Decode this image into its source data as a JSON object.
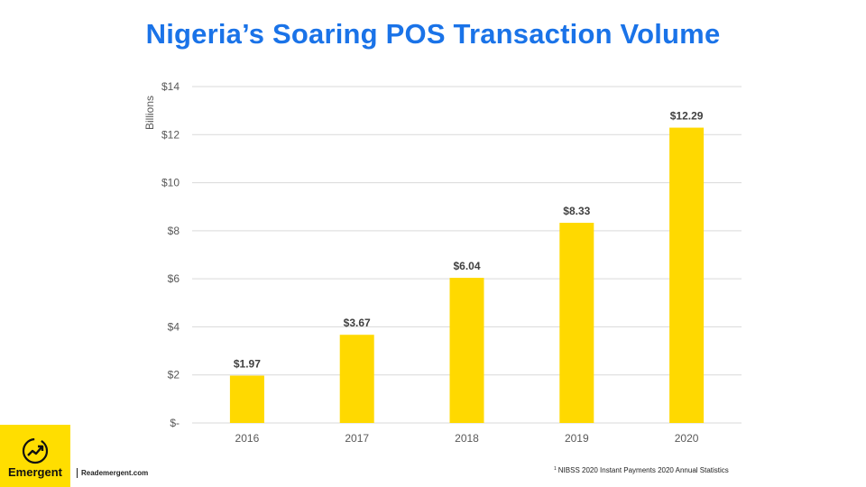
{
  "title": "Nigeria’s Soaring POS Transaction Volume",
  "chart_data": {
    "type": "bar",
    "title": "Nigeria’s Soaring POS Transaction Volume",
    "ylabel": "Billions",
    "xlabel": "",
    "categories": [
      "2016",
      "2017",
      "2018",
      "2019",
      "2020"
    ],
    "values": [
      1.97,
      3.67,
      6.04,
      8.33,
      12.29
    ],
    "data_labels": [
      "$1.97",
      "$3.67",
      "$6.04",
      "$8.33",
      "$12.29"
    ],
    "ylim": [
      0,
      14
    ],
    "yticks": [
      0,
      2,
      4,
      6,
      8,
      10,
      12,
      14
    ],
    "ytick_labels": [
      "$-",
      "$2",
      "$4",
      "$6",
      "$8",
      "$10",
      "$12",
      "$14"
    ],
    "grid": true,
    "bar_color": "#FFD900"
  },
  "footer": {
    "logo_text": "Emergent",
    "site": "Reademergent.com",
    "source_sup": "1",
    "source": "NIBSS 2020 Instant Payments 2020 Annual Statistics"
  },
  "colors": {
    "title": "#1a73e8",
    "logo_bg": "#ffde00"
  }
}
